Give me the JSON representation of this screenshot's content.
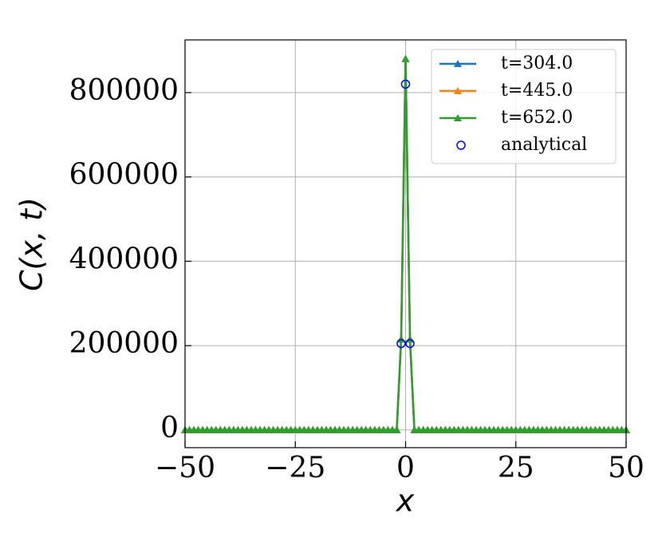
{
  "chart_data": {
    "type": "line",
    "xlabel": "x",
    "ylabel": "C(x, t)",
    "x": [
      -50,
      -49,
      -48,
      -47,
      -46,
      -45,
      -44,
      -43,
      -42,
      -41,
      -40,
      -39,
      -38,
      -37,
      -36,
      -35,
      -34,
      -33,
      -32,
      -31,
      -30,
      -29,
      -28,
      -27,
      -26,
      -25,
      -24,
      -23,
      -22,
      -21,
      -20,
      -19,
      -18,
      -17,
      -16,
      -15,
      -14,
      -13,
      -12,
      -11,
      -10,
      -9,
      -8,
      -7,
      -6,
      -5,
      -4,
      -3,
      -2,
      -1,
      0,
      1,
      2,
      3,
      4,
      5,
      6,
      7,
      8,
      9,
      10,
      11,
      12,
      13,
      14,
      15,
      16,
      17,
      18,
      19,
      20,
      21,
      22,
      23,
      24,
      25,
      26,
      27,
      28,
      29,
      30,
      31,
      32,
      33,
      34,
      35,
      36,
      37,
      38,
      39,
      40,
      41,
      42,
      43,
      44,
      45,
      46,
      47,
      48,
      49,
      50
    ],
    "series": [
      {
        "name": "t=304.0",
        "color": "#1f77b4",
        "marker": "triangle",
        "values": [
          0,
          0,
          0,
          0,
          0,
          0,
          0,
          0,
          0,
          0,
          0,
          0,
          0,
          0,
          0,
          0,
          0,
          0,
          0,
          0,
          0,
          0,
          0,
          0,
          0,
          0,
          0,
          0,
          0,
          0,
          0,
          0,
          0,
          0,
          0,
          0,
          0,
          0,
          0,
          0,
          0,
          0,
          0,
          0,
          0,
          0,
          0,
          0,
          0,
          215000,
          880000,
          215000,
          0,
          0,
          0,
          0,
          0,
          0,
          0,
          0,
          0,
          0,
          0,
          0,
          0,
          0,
          0,
          0,
          0,
          0,
          0,
          0,
          0,
          0,
          0,
          0,
          0,
          0,
          0,
          0,
          0,
          0,
          0,
          0,
          0,
          0,
          0,
          0,
          0,
          0,
          0,
          0,
          0,
          0,
          0,
          0,
          0,
          0,
          0,
          0,
          0
        ]
      },
      {
        "name": "t=445.0",
        "color": "#ff7f0e",
        "marker": "triangle",
        "values": [
          0,
          0,
          0,
          0,
          0,
          0,
          0,
          0,
          0,
          0,
          0,
          0,
          0,
          0,
          0,
          0,
          0,
          0,
          0,
          0,
          0,
          0,
          0,
          0,
          0,
          0,
          0,
          0,
          0,
          0,
          0,
          0,
          0,
          0,
          0,
          0,
          0,
          0,
          0,
          0,
          0,
          0,
          0,
          0,
          0,
          0,
          0,
          0,
          0,
          215000,
          880000,
          215000,
          0,
          0,
          0,
          0,
          0,
          0,
          0,
          0,
          0,
          0,
          0,
          0,
          0,
          0,
          0,
          0,
          0,
          0,
          0,
          0,
          0,
          0,
          0,
          0,
          0,
          0,
          0,
          0,
          0,
          0,
          0,
          0,
          0,
          0,
          0,
          0,
          0,
          0,
          0,
          0,
          0,
          0,
          0,
          0,
          0,
          0,
          0,
          0,
          0
        ]
      },
      {
        "name": "t=652.0",
        "color": "#2ca02c",
        "marker": "triangle",
        "values": [
          0,
          0,
          0,
          0,
          0,
          0,
          0,
          0,
          0,
          0,
          0,
          0,
          0,
          0,
          0,
          0,
          0,
          0,
          0,
          0,
          0,
          0,
          0,
          0,
          0,
          0,
          0,
          0,
          0,
          0,
          0,
          0,
          0,
          0,
          0,
          0,
          0,
          0,
          0,
          0,
          0,
          0,
          0,
          0,
          0,
          0,
          0,
          0,
          0,
          215000,
          880000,
          215000,
          0,
          0,
          0,
          0,
          0,
          0,
          0,
          0,
          0,
          0,
          0,
          0,
          0,
          0,
          0,
          0,
          0,
          0,
          0,
          0,
          0,
          0,
          0,
          0,
          0,
          0,
          0,
          0,
          0,
          0,
          0,
          0,
          0,
          0,
          0,
          0,
          0,
          0,
          0,
          0,
          0,
          0,
          0,
          0,
          0,
          0,
          0,
          0,
          0
        ]
      }
    ],
    "analytical": {
      "name": "analytical",
      "color": "#0000ff",
      "x": [
        -1,
        0,
        1
      ],
      "values": [
        205000,
        820000,
        205000
      ]
    },
    "xlim": [
      -50,
      50
    ],
    "ylim": [
      -42000,
      925000
    ],
    "xticks": [
      {
        "value": -50,
        "label": "−50"
      },
      {
        "value": -25,
        "label": "−25"
      },
      0,
      25,
      50
    ],
    "yticks": [
      0,
      200000,
      400000,
      600000,
      800000
    ],
    "grid": true,
    "legend": "upper right"
  }
}
